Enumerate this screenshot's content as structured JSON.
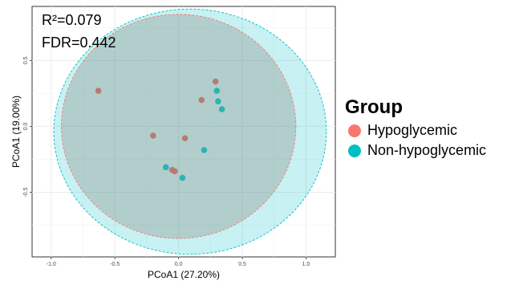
{
  "chart_data": {
    "type": "scatter",
    "xlabel": "PCoA1 (27.20%)",
    "ylabel": "PCoA1 (19.00%)",
    "xlim": [
      -1.15,
      1.23
    ],
    "ylim": [
      -0.99,
      0.91
    ],
    "xticks": [
      -1.0,
      -0.5,
      0.0,
      0.5,
      1.0
    ],
    "xtick_labels": [
      "-1.0",
      "-0.5",
      "0.0",
      "0.5",
      "1.0"
    ],
    "yticks": [
      -0.5,
      0.0,
      0.5
    ],
    "ytick_labels": [
      "-0.5",
      "0.0",
      "0.5"
    ],
    "grid": true,
    "annotations": {
      "r2": "R²=0.079",
      "fdr": "FDR=0.442"
    },
    "legend": {
      "title": "Group",
      "placement": "right"
    },
    "series": [
      {
        "name": "Hypoglycemic",
        "color": "#F8766D",
        "points": [
          {
            "x": -0.63,
            "y": 0.27
          },
          {
            "x": 0.29,
            "y": 0.34
          },
          {
            "x": 0.18,
            "y": 0.2
          },
          {
            "x": -0.2,
            "y": -0.07
          },
          {
            "x": 0.05,
            "y": -0.09
          },
          {
            "x": -0.05,
            "y": -0.33
          },
          {
            "x": -0.03,
            "y": -0.34
          }
        ],
        "ellipse": {
          "cx": 0.0,
          "cy": 0.0,
          "rx": 0.92,
          "ry": 0.85
        }
      },
      {
        "name": "Non-hypoglycemic",
        "color": "#00BFC4",
        "points": [
          {
            "x": 0.3,
            "y": 0.27
          },
          {
            "x": 0.31,
            "y": 0.19
          },
          {
            "x": 0.34,
            "y": 0.13
          },
          {
            "x": 0.2,
            "y": -0.18
          },
          {
            "x": -0.1,
            "y": -0.31
          },
          {
            "x": 0.03,
            "y": -0.39
          }
        ],
        "ellipse": {
          "cx": 0.09,
          "cy": -0.04,
          "rx": 1.07,
          "ry": 0.93
        }
      }
    ]
  }
}
